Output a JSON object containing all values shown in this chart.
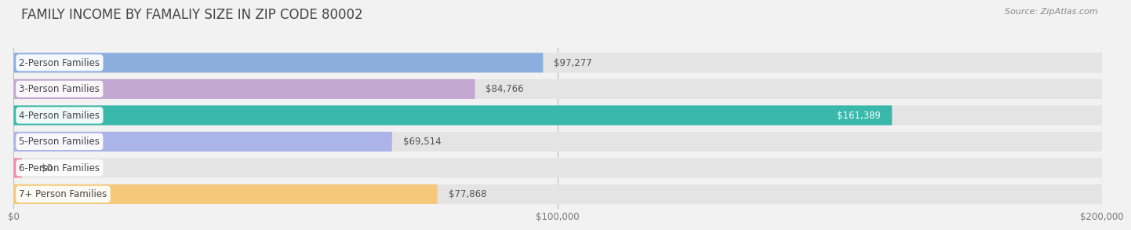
{
  "title": "FAMILY INCOME BY FAMALIY SIZE IN ZIP CODE 80002",
  "source": "Source: ZipAtlas.com",
  "categories": [
    "2-Person Families",
    "3-Person Families",
    "4-Person Families",
    "5-Person Families",
    "6-Person Families",
    "7+ Person Families"
  ],
  "values": [
    97277,
    84766,
    161389,
    69514,
    0,
    77868
  ],
  "bar_colors": [
    "#8caede",
    "#c3a8d1",
    "#3ab8ac",
    "#aab4e8",
    "#f48aaa",
    "#f5c87a"
  ],
  "xlim": [
    0,
    200000
  ],
  "xticks": [
    0,
    100000,
    200000
  ],
  "xtick_labels": [
    "$0",
    "$100,000",
    "$200,000"
  ],
  "background_color": "#f2f2f2",
  "bar_bg_color": "#e4e4e4",
  "title_fontsize": 12,
  "tick_fontsize": 8.5,
  "label_fontsize": 8.5,
  "value_fontsize": 8.5,
  "source_fontsize": 8
}
